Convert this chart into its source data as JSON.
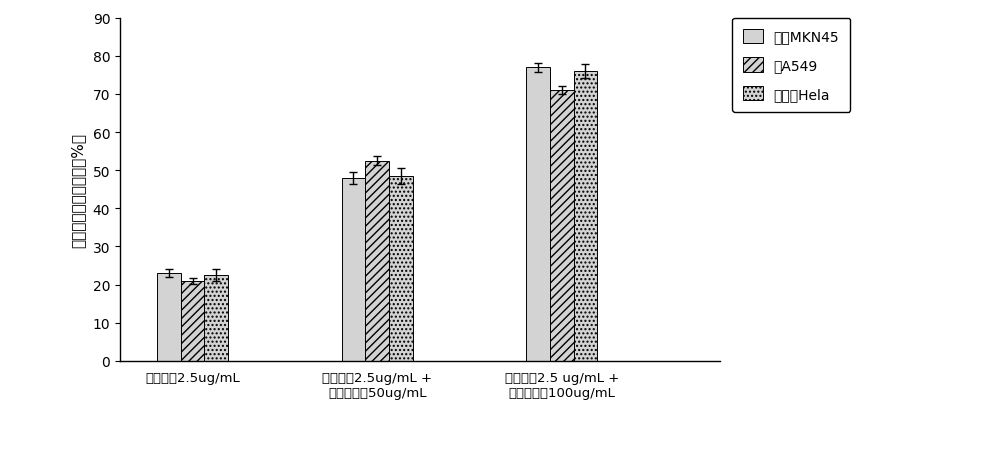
{
  "groups": [
    "氟尿嘴啪2.5ug/mL",
    "氟尿嘴啪2.5ug/mL +\n龙须菜多糖50ug/mL",
    "氟尿嘴啪2.5 ug/mL +\n龙须菜多糖100ug/mL"
  ],
  "series": [
    {
      "label": "胃癌MKN45",
      "values": [
        23.0,
        48.0,
        77.0
      ],
      "errors": [
        1.0,
        1.5,
        1.2
      ]
    },
    {
      "label": "肺A549",
      "values": [
        21.0,
        52.5,
        71.0
      ],
      "errors": [
        0.8,
        1.2,
        1.0
      ]
    },
    {
      "label": "宫颈癌Hela",
      "values": [
        22.5,
        48.5,
        76.0
      ],
      "errors": [
        1.5,
        2.0,
        1.8
      ]
    }
  ],
  "ylim": [
    0,
    90
  ],
  "yticks": [
    0,
    10,
    20,
    30,
    40,
    50,
    60,
    70,
    80,
    90
  ],
  "ylabel": "胿瘾细胞生长抑制率（%）",
  "bar_width": 0.18,
  "facecolor_plain": "#d3d3d3",
  "edge_color": "#000000",
  "hatch_diagonal": "////",
  "hatch_dots": "....",
  "background_color": "#ffffff",
  "group_centers": [
    1.0,
    2.4,
    3.8
  ],
  "xlim": [
    0.45,
    5.0
  ],
  "legend_series": [
    "胃癌MKN45",
    "肺A549",
    "宫颈癌Hela"
  ]
}
